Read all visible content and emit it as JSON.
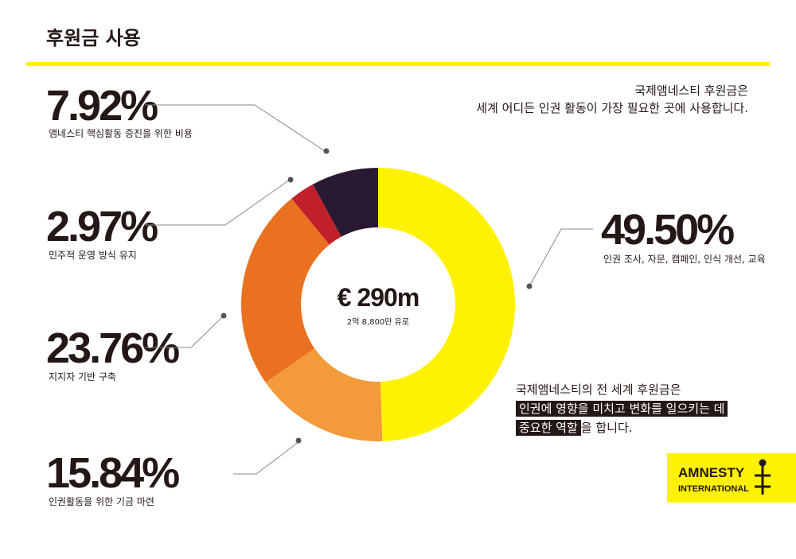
{
  "header": {
    "title": "후원금 사용"
  },
  "chart_data": {
    "type": "donut",
    "center_title": "€ 290m",
    "center_subtitle": "2억 8,800만 유로",
    "categories": [
      "인권 조사, 자문, 캠페인, 인식 개선, 교육",
      "인권활동을 위한 기금 마련",
      "지지자 기반 구축",
      "민주적 운영 방식 유지",
      "앰네스티 핵심활동 증진을 위한 비용"
    ],
    "values": [
      49.5,
      15.84,
      23.76,
      2.97,
      7.92
    ],
    "value_labels": [
      "49.50%",
      "15.84%",
      "23.76%",
      "2.97%",
      "7.92%"
    ],
    "colors": [
      "#fff200",
      "#f39a3a",
      "#ea7120",
      "#c0202a",
      "#2a1932"
    ]
  },
  "notes": {
    "top": [
      "국제앰네스티 후원금은",
      "세계 어디든 인권 활동이 가장 필요한 곳에 사용합니다."
    ],
    "bottom": {
      "line1": "국제앰네스티의 전 세계 후원금은",
      "highlight1": "인권에 영향을 미치고 변화를 일으키는 데",
      "highlight2": "중요한 역할",
      "tail": "을 합니다."
    }
  },
  "logo": [
    "AMNESTY",
    "INTERNATIONAL"
  ]
}
